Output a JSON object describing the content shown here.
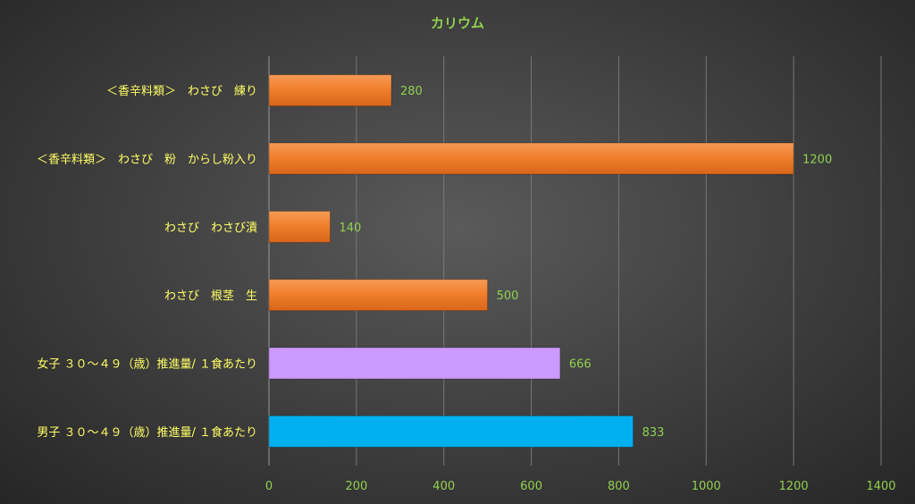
{
  "chart_data": {
    "type": "bar",
    "orientation": "horizontal",
    "title": "カリウム",
    "xlabel": "",
    "ylabel": "",
    "xlim": [
      0,
      1400
    ],
    "ticks": [
      "0",
      "200",
      "400",
      "600",
      "800",
      "1000",
      "1200",
      "1400"
    ],
    "grid": true,
    "legend": "none",
    "categories": [
      "＜香辛料類＞　わさび　練り",
      "＜香辛料類＞　わさび　粉　からし粉入り",
      "わさび　わさび漬",
      "わさび　根茎　生",
      "女子 ３０～４９（歳）推進量/ １食あたり",
      "男子 ３０～４９（歳）推進量/ １食あたり"
    ],
    "values": [
      280,
      1200,
      140,
      500,
      666,
      833
    ],
    "bar_colors": [
      "#f07d2a",
      "#f07d2a",
      "#f07d2a",
      "#f07d2a",
      "#cc99ff",
      "#00b0f0"
    ]
  }
}
